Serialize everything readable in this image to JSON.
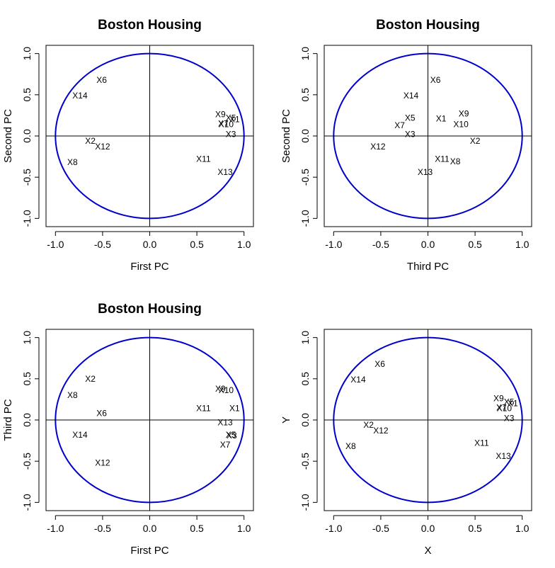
{
  "chart_data": [
    {
      "type": "scatter",
      "title": "Boston Housing",
      "xlabel": "First PC",
      "ylabel": "Second PC",
      "xlim": [
        -1.1,
        1.1
      ],
      "ylim": [
        -1.1,
        1.1
      ],
      "xticks": [
        "-1.0",
        "-0.5",
        "0.0",
        "0.5",
        "1.0"
      ],
      "yticks": [
        "-1.0",
        "-0.5",
        "0.0",
        "0.5",
        "1.0"
      ],
      "circle_color": "#0000CD",
      "points": [
        {
          "label": "X6",
          "x": -0.51,
          "y": 0.68
        },
        {
          "label": "X14",
          "x": -0.74,
          "y": 0.49
        },
        {
          "label": "X9",
          "x": 0.75,
          "y": 0.26
        },
        {
          "label": "X5",
          "x": 0.86,
          "y": 0.22
        },
        {
          "label": "X1",
          "x": 0.9,
          "y": 0.2
        },
        {
          "label": "X7",
          "x": 0.78,
          "y": 0.15
        },
        {
          "label": "X10",
          "x": 0.81,
          "y": 0.14
        },
        {
          "label": "X3",
          "x": 0.86,
          "y": 0.02
        },
        {
          "label": "X2",
          "x": -0.63,
          "y": -0.06
        },
        {
          "label": "X12",
          "x": -0.5,
          "y": -0.13
        },
        {
          "label": "X8",
          "x": -0.82,
          "y": -0.32
        },
        {
          "label": "X11",
          "x": 0.57,
          "y": -0.28
        },
        {
          "label": "X13",
          "x": 0.8,
          "y": -0.44
        }
      ]
    },
    {
      "type": "scatter",
      "title": "Boston Housing",
      "xlabel": "Third PC",
      "ylabel": "Second PC",
      "xlim": [
        -1.1,
        1.1
      ],
      "ylim": [
        -1.1,
        1.1
      ],
      "xticks": [
        "-1.0",
        "-0.5",
        "0.0",
        "0.5",
        "1.0"
      ],
      "yticks": [
        "-1.0",
        "-0.5",
        "0.0",
        "0.5",
        "1.0"
      ],
      "circle_color": "#0000CD",
      "points": [
        {
          "label": "X6",
          "x": 0.08,
          "y": 0.68
        },
        {
          "label": "X14",
          "x": -0.18,
          "y": 0.49
        },
        {
          "label": "X9",
          "x": 0.38,
          "y": 0.27
        },
        {
          "label": "X5",
          "x": -0.19,
          "y": 0.22
        },
        {
          "label": "X1",
          "x": 0.14,
          "y": 0.21
        },
        {
          "label": "X7",
          "x": -0.3,
          "y": 0.13
        },
        {
          "label": "X10",
          "x": 0.35,
          "y": 0.14
        },
        {
          "label": "X3",
          "x": -0.19,
          "y": 0.02
        },
        {
          "label": "X2",
          "x": 0.5,
          "y": -0.06
        },
        {
          "label": "X12",
          "x": -0.53,
          "y": -0.13
        },
        {
          "label": "X11",
          "x": 0.15,
          "y": -0.28
        },
        {
          "label": "X8",
          "x": 0.29,
          "y": -0.31
        },
        {
          "label": "X13",
          "x": -0.03,
          "y": -0.44
        }
      ]
    },
    {
      "type": "scatter",
      "title": "Boston Housing",
      "xlabel": "First PC",
      "ylabel": "Third PC",
      "xlim": [
        -1.1,
        1.1
      ],
      "ylim": [
        -1.1,
        1.1
      ],
      "xticks": [
        "-1.0",
        "-0.5",
        "0.0",
        "0.5",
        "1.0"
      ],
      "yticks": [
        "-1.0",
        "-0.5",
        "0.0",
        "0.5",
        "1.0"
      ],
      "circle_color": "#0000CD",
      "points": [
        {
          "label": "X2",
          "x": -0.63,
          "y": 0.5
        },
        {
          "label": "X9",
          "x": 0.75,
          "y": 0.38
        },
        {
          "label": "X10",
          "x": 0.81,
          "y": 0.36
        },
        {
          "label": "X8",
          "x": -0.82,
          "y": 0.3
        },
        {
          "label": "X11",
          "x": 0.57,
          "y": 0.14
        },
        {
          "label": "X1",
          "x": 0.9,
          "y": 0.14
        },
        {
          "label": "X6",
          "x": -0.51,
          "y": 0.08
        },
        {
          "label": "X13",
          "x": 0.8,
          "y": -0.03
        },
        {
          "label": "X5",
          "x": 0.86,
          "y": -0.18
        },
        {
          "label": "X3",
          "x": 0.87,
          "y": -0.19
        },
        {
          "label": "X14",
          "x": -0.74,
          "y": -0.18
        },
        {
          "label": "X7",
          "x": 0.8,
          "y": -0.3
        },
        {
          "label": "X12",
          "x": -0.5,
          "y": -0.52
        }
      ]
    },
    {
      "type": "scatter",
      "title": "",
      "xlabel": "X",
      "ylabel": "Y",
      "xlim": [
        -1.1,
        1.1
      ],
      "ylim": [
        -1.1,
        1.1
      ],
      "xticks": [
        "-1.0",
        "-0.5",
        "0.0",
        "0.5",
        "1.0"
      ],
      "yticks": [
        "-1.0",
        "-0.5",
        "0.0",
        "0.5",
        "1.0"
      ],
      "circle_color": "#0000CD",
      "points": [
        {
          "label": "X6",
          "x": -0.51,
          "y": 0.68
        },
        {
          "label": "X14",
          "x": -0.74,
          "y": 0.49
        },
        {
          "label": "X9",
          "x": 0.75,
          "y": 0.26
        },
        {
          "label": "X5",
          "x": 0.86,
          "y": 0.22
        },
        {
          "label": "X1",
          "x": 0.9,
          "y": 0.2
        },
        {
          "label": "X7",
          "x": 0.78,
          "y": 0.15
        },
        {
          "label": "X10",
          "x": 0.81,
          "y": 0.14
        },
        {
          "label": "X3",
          "x": 0.86,
          "y": 0.02
        },
        {
          "label": "X2",
          "x": -0.63,
          "y": -0.06
        },
        {
          "label": "X12",
          "x": -0.5,
          "y": -0.13
        },
        {
          "label": "X8",
          "x": -0.82,
          "y": -0.32
        },
        {
          "label": "X11",
          "x": 0.57,
          "y": -0.28
        },
        {
          "label": "X13",
          "x": 0.8,
          "y": -0.44
        }
      ]
    }
  ]
}
